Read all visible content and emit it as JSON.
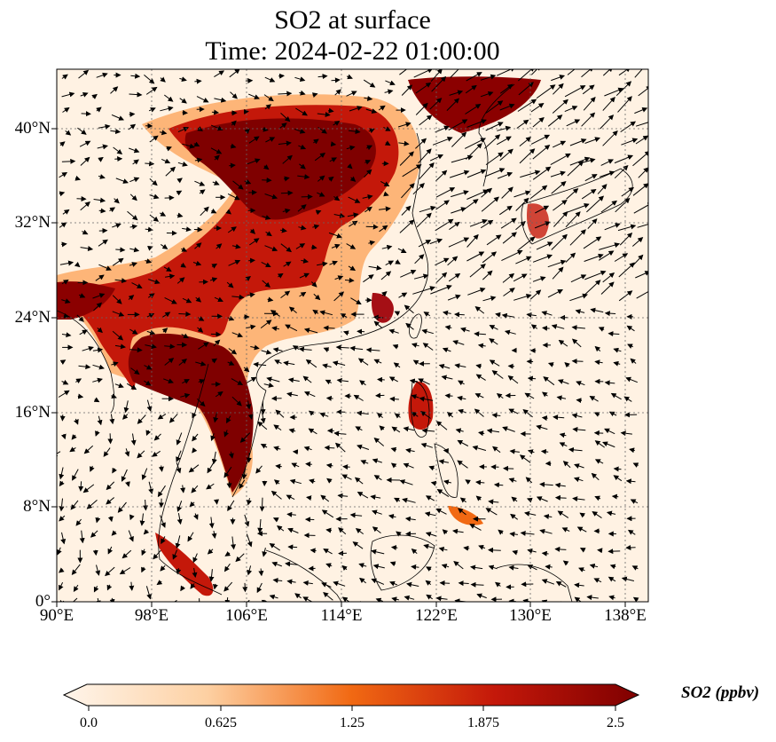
{
  "title": {
    "line1": "SO2 at surface",
    "line2": "Time: 2024-02-22 01:00:00"
  },
  "map": {
    "lon_range": [
      90,
      140
    ],
    "lat_range": [
      0,
      45
    ],
    "lat_ticks": [
      "0°",
      "8°N",
      "16°N",
      "24°N",
      "32°N",
      "40°N"
    ],
    "lon_ticks": [
      "90°E",
      "98°E",
      "106°E",
      "114°E",
      "122°E",
      "130°E",
      "138°E"
    ],
    "gridlines": true,
    "field": "SO2 surface concentration with wind vectors"
  },
  "colorbar": {
    "label": "SO2 (ppbv)",
    "ticks": [
      "0.0",
      "0.625",
      "1.25",
      "1.875",
      "2.5"
    ],
    "min": 0.0,
    "max": 2.5,
    "colors": [
      "#fff5eb",
      "#fdd0a2",
      "#fd8d3c",
      "#d94801",
      "#a50f15",
      "#7f0000"
    ]
  }
}
